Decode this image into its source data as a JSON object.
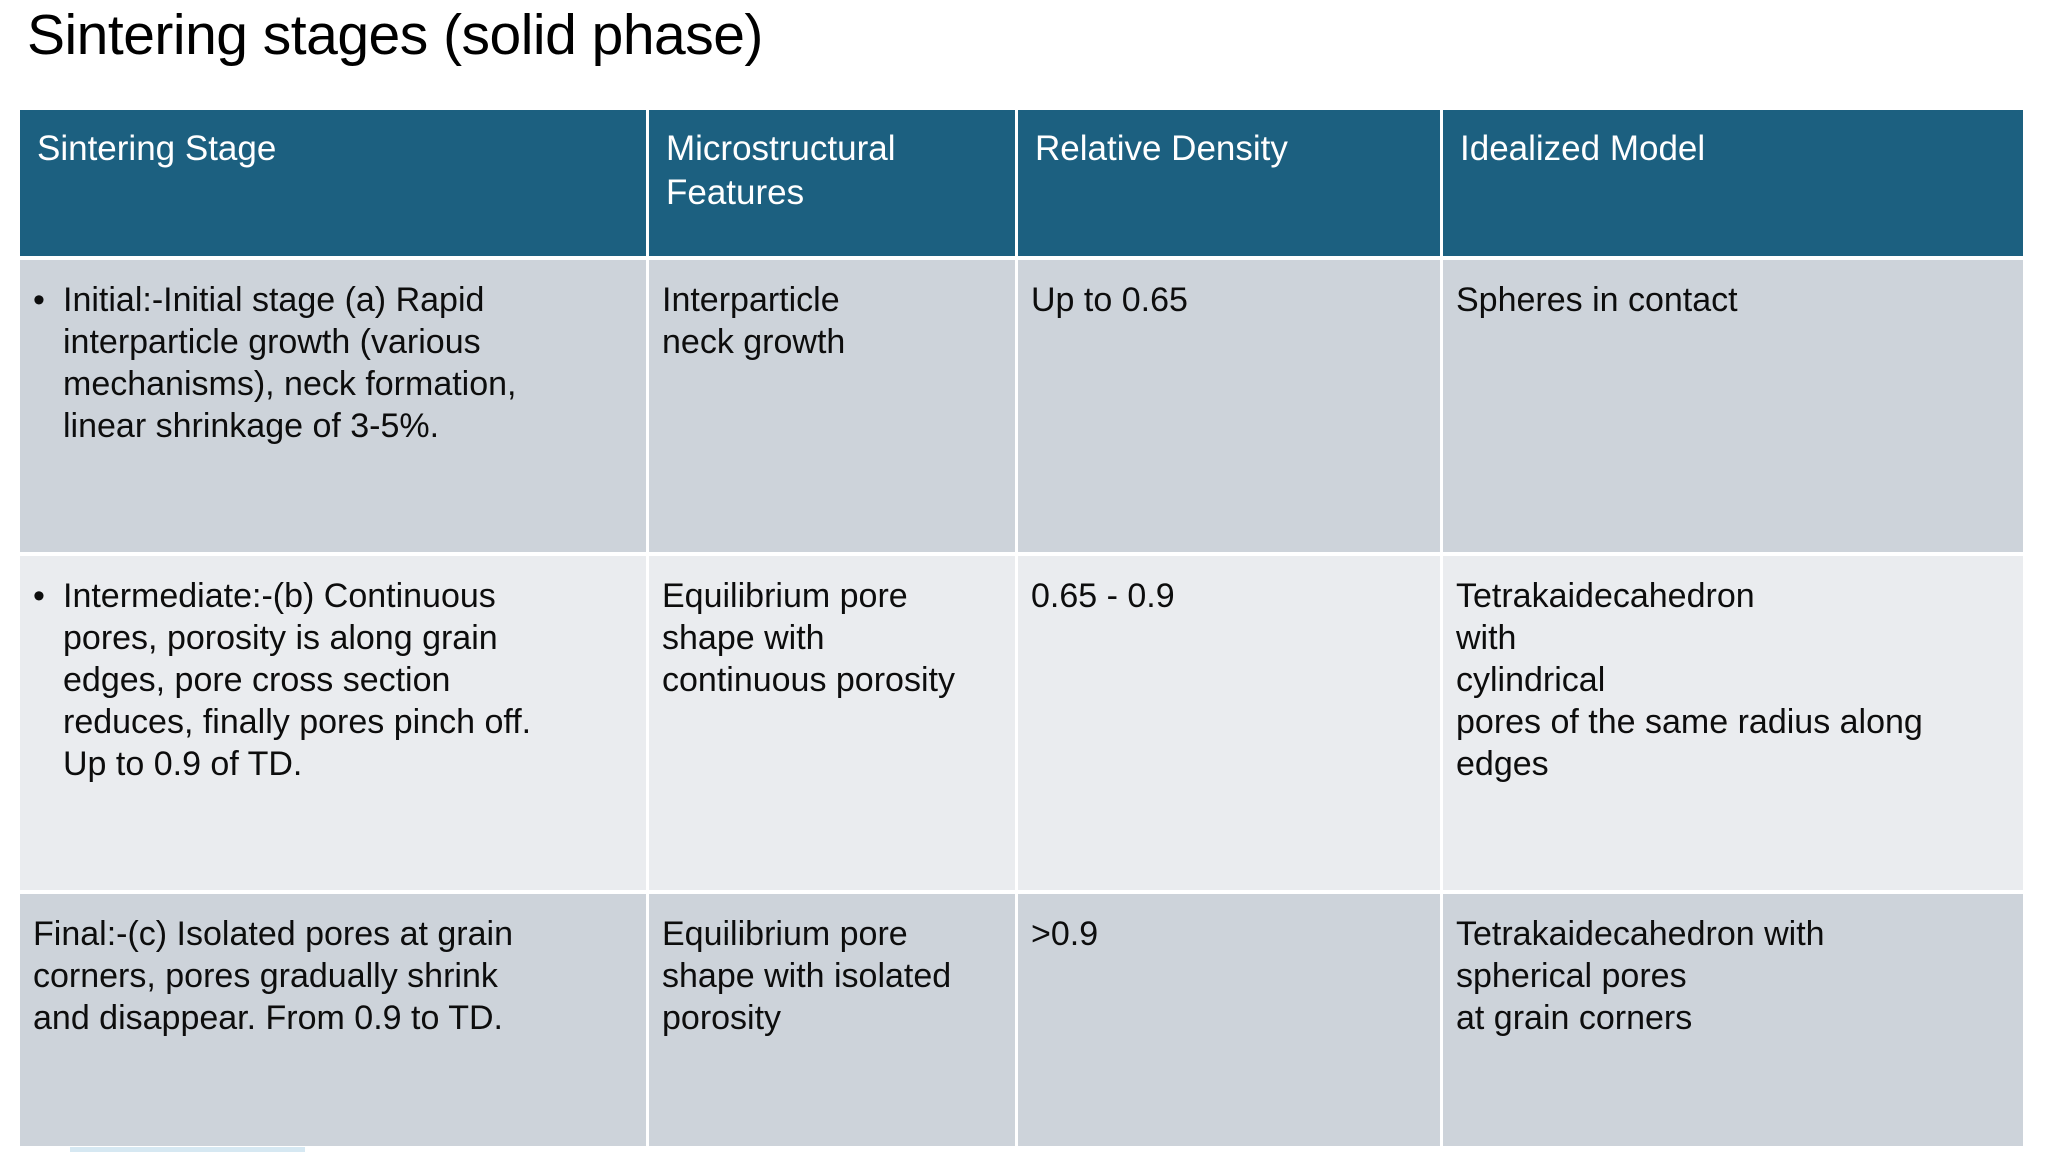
{
  "slide": {
    "title": "Sintering stages (solid phase)"
  },
  "table": {
    "headers": [
      "Sintering Stage",
      "Microstructural\nFeatures",
      "Relative Density",
      "Idealized Model"
    ],
    "rows": [
      {
        "bullet": "•",
        "stage": "Initial:-Initial stage (a) Rapid\ninterparticle growth (various\nmechanisms), neck formation,\nlinear shrinkage of 3-5%.",
        "features": "Interparticle\nneck growth",
        "density": "Up to 0.65",
        "model": "Spheres in contact"
      },
      {
        "bullet": "•",
        "stage": "Intermediate:-(b) Continuous\npores, porosity is along grain\nedges, pore cross section\nreduces, finally pores pinch off.\nUp to 0.9 of TD.",
        "features": "Equilibrium pore\nshape with\ncontinuous porosity",
        "density": "0.65 - 0.9",
        "model": "Tetrakaidecahedron\nwith\ncylindrical\npores of the same radius along\nedges"
      },
      {
        "bullet": "",
        "stage": "Final:-(c) Isolated pores at grain\ncorners, pores gradually shrink\nand disappear. From 0.9 to TD.",
        "features": "Equilibrium pore\nshape with isolated\nporosity",
        "density": ">0.9",
        "model": "Tetrakaidecahedron with\nspherical pores\nat grain corners"
      }
    ],
    "colors": {
      "header_bg": "#1C6080",
      "header_text": "#FFFFFF",
      "row_band_dark": "#CDD3DA",
      "row_band_light": "#EAECEF",
      "body_text": "#0D0D0D",
      "divider": "#FFFFFF",
      "accent_strip": "#D6E8F2"
    }
  }
}
